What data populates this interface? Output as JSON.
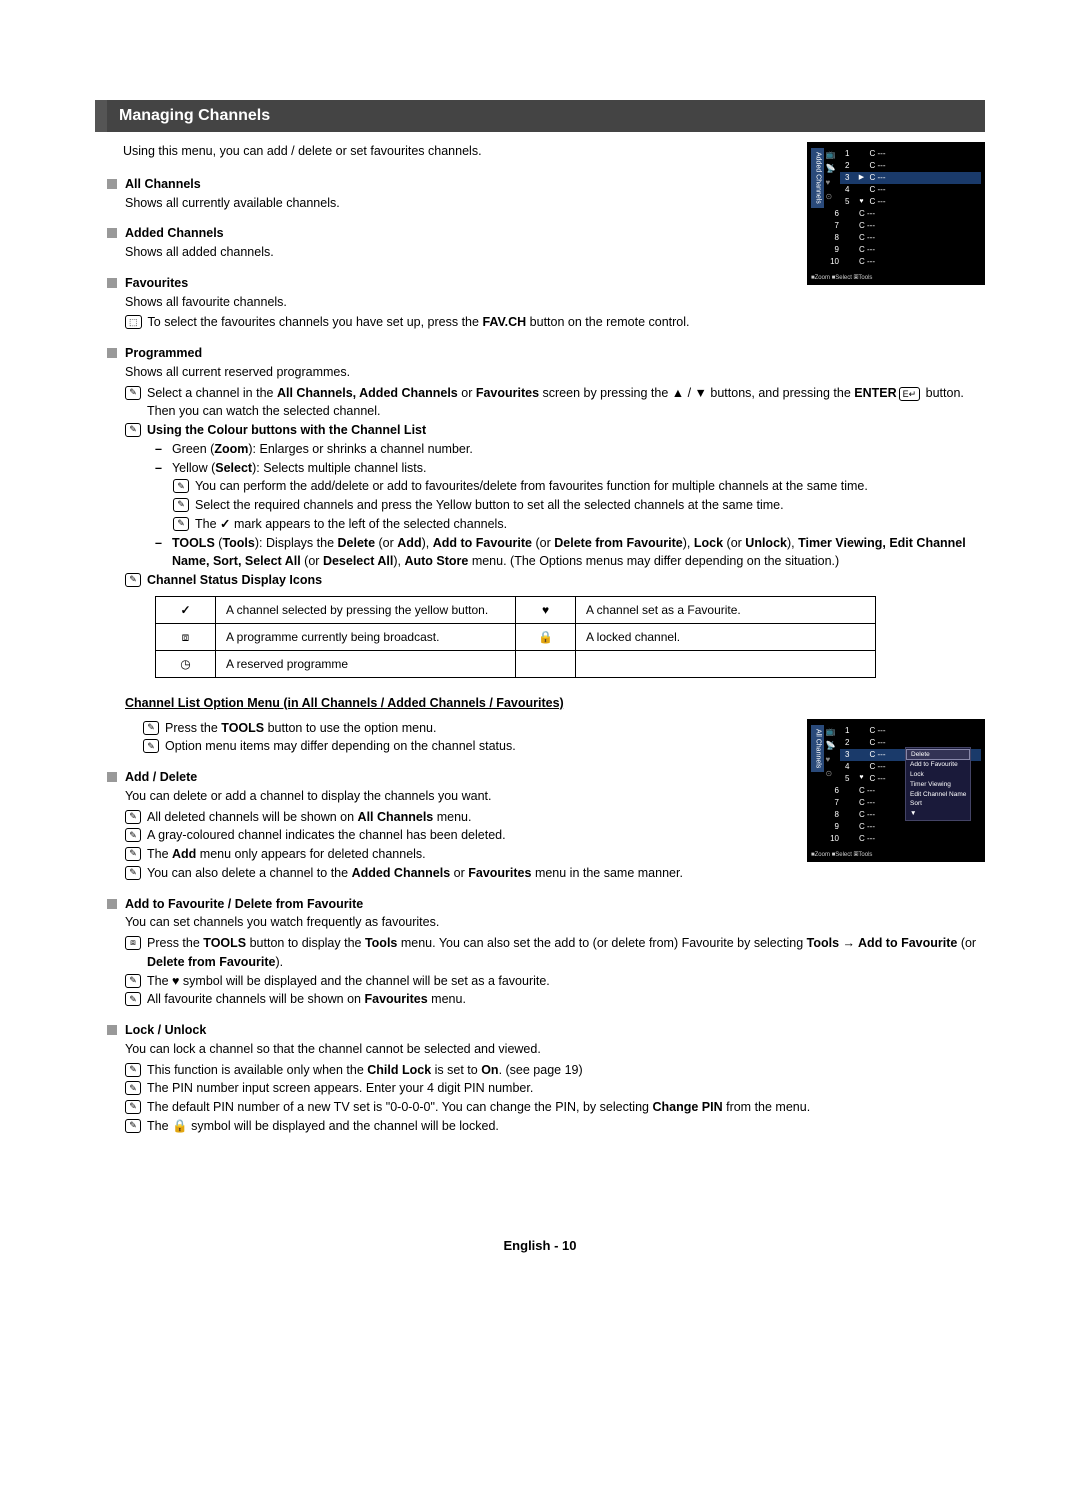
{
  "header": "Managing Channels",
  "intro": "Using this menu, you can add / delete or set favourites channels.",
  "sections": {
    "allch": {
      "title": "All Channels",
      "body": "Shows all currently available channels."
    },
    "added": {
      "title": "Added Channels",
      "body": "Shows all added channels."
    },
    "fav": {
      "title": "Favourites",
      "body": "Shows all favourite channels."
    },
    "fav_note_pre": "To select the favourites channels you have set up, press the ",
    "fav_note_bold": "FAV.CH",
    "fav_note_post": " button on the remote control.",
    "prog": {
      "title": "Programmed",
      "body": "Shows all current reserved programmes."
    },
    "prog_n1a": "Select a channel in the ",
    "prog_n1b": "All Channels, Added Channels",
    "prog_n1c": " or ",
    "prog_n1d": "Favourites",
    "prog_n1e": " screen by pressing the ▲ / ▼ buttons, and pressing the ",
    "prog_n1f": "ENTER",
    "prog_n1g": " button. Then you can watch the selected channel.",
    "prog_n2": "Using the Colour buttons with the Channel List",
    "d1a": "Green (",
    "d1b": "Zoom",
    "d1c": "): Enlarges or shrinks a channel number.",
    "d2a": "Yellow (",
    "d2b": "Select",
    "d2c": "): Selects multiple channel lists.",
    "d2n1": "You can perform the add/delete or add to favourites/delete from favourites function for multiple channels at the same time.",
    "d2n2": "Select the required channels and press the Yellow button to set all the selected channels at the same time.",
    "d2n3_pre": "The ",
    "d2n3_post": " mark appears to the left of the selected channels.",
    "d3a": "TOOLS",
    "d3b": " (",
    "d3c": "Tools",
    "d3d": "): Displays the ",
    "d3e": "Delete",
    "d3f": " (or ",
    "d3g": "Add",
    "d3h": "), ",
    "d3i": "Add to Favourite",
    "d3j": " (or ",
    "d3k": "Delete from Favourite",
    "d3l": "), ",
    "d3m": "Lock",
    "d3n": " (or ",
    "d3o": "Unlock",
    "d3p": "), ",
    "d3q": "Timer Viewing, Edit Channel Name, Sort, Select All",
    "d3r": " (or ",
    "d3s": "Deselect All",
    "d3t": "), ",
    "d3u": "Auto Store",
    "d3v": " menu. (The Options menus may differ depending on the situation.)",
    "prog_n3": "Channel Status Display Icons"
  },
  "table": {
    "r1c1": "A channel selected by pressing the yellow button.",
    "r1c2": "A channel set as a Favourite.",
    "r2c1": "A programme currently being broadcast.",
    "r2c2": "A locked channel.",
    "r3c1": "A reserved programme"
  },
  "subtitle": "Channel List Option Menu (in All Channels / Added Channels / Favourites)",
  "opt": {
    "n1a": "Press the ",
    "n1b": "TOOLS",
    "n1c": " button to use the option menu.",
    "n2": "Option menu items may differ depending on the channel status."
  },
  "adddel": {
    "title": "Add / Delete",
    "body": "You can delete or add a channel to display the channels you want.",
    "n1a": "All deleted channels will be shown on ",
    "n1b": "All Channels",
    "n1c": " menu.",
    "n2": "A gray-coloured channel indicates the channel has been deleted.",
    "n3a": "The ",
    "n3b": "Add",
    "n3c": " menu only appears for deleted channels.",
    "n4a": "You can also delete a channel to the ",
    "n4b": "Added Channels",
    "n4c": " or ",
    "n4d": "Favourites",
    "n4e": " menu in the same manner."
  },
  "addfav": {
    "title": "Add to Favourite / Delete from Favourite",
    "body": "You can set channels you watch frequently as favourites.",
    "n1a": "Press the ",
    "n1b": "TOOLS",
    "n1c": " button to display the ",
    "n1d": "Tools",
    "n1e": " menu. You can also set the add to (or delete from) Favourite by selecting ",
    "n1f": "Tools → Add to Favourite",
    "n1g": " (or ",
    "n1h": "Delete from Favourite",
    "n1i": ").",
    "n2a": "The ",
    "n2b": " symbol will be displayed and the channel will be set as a favourite.",
    "n3a": "All favourite channels will be shown on ",
    "n3b": "Favourites",
    "n3c": " menu."
  },
  "lock": {
    "title": "Lock / Unlock",
    "body": "You can lock a channel so that the channel cannot be selected and viewed.",
    "n1a": "This function is available only when the ",
    "n1b": "Child Lock",
    "n1c": " is set to ",
    "n1d": "On",
    "n1e": ". (see page 19)",
    "n2": "The PIN number input screen appears. Enter your 4 digit PIN number.",
    "n3a": "The default PIN number of a new TV set is \"0-0-0-0\". You can change the PIN, by selecting ",
    "n3b": "Change PIN",
    "n3c": " from the menu.",
    "n4a": "The ",
    "n4b": " symbol will be displayed and the channel will be locked."
  },
  "tv1": {
    "tab": "Added Channels",
    "rows": [
      {
        "i": "1",
        "c": "C ---"
      },
      {
        "i": "2",
        "c": "C ---"
      },
      {
        "i": "3",
        "c": "C ---",
        "hl": true,
        "ic": "▶"
      },
      {
        "i": "4",
        "c": "C ---"
      },
      {
        "i": "5",
        "c": "C ---",
        "ic": "♥"
      },
      {
        "i": "6",
        "c": "C ---"
      },
      {
        "i": "7",
        "c": "C ---"
      },
      {
        "i": "8",
        "c": "C ---"
      },
      {
        "i": "9",
        "c": "C ---"
      },
      {
        "i": "10",
        "c": "C ---"
      }
    ],
    "footer": "■Zoom ■Select 🞖Tools",
    "side_icons": [
      "📺",
      "📡",
      "♥",
      "⊙"
    ]
  },
  "tv2": {
    "tab": "All Channels",
    "rows": [
      {
        "i": "1",
        "c": "C ---"
      },
      {
        "i": "2",
        "c": "C ---"
      },
      {
        "i": "3",
        "c": "C ---",
        "hl": true
      },
      {
        "i": "4",
        "c": "C ---"
      },
      {
        "i": "5",
        "c": "C ---",
        "ic": "♥"
      },
      {
        "i": "6",
        "c": "C ---"
      },
      {
        "i": "7",
        "c": "C ---"
      },
      {
        "i": "8",
        "c": "C ---"
      },
      {
        "i": "9",
        "c": "C ---"
      },
      {
        "i": "10",
        "c": "C ---"
      }
    ],
    "footer": "■Zoom ■Select 🞖Tools",
    "side_icons": [
      "📺",
      "📡",
      "♥",
      "⊙"
    ],
    "ctx": [
      "Delete",
      "Add to Favourite",
      "Lock",
      "Timer Viewing",
      "Edit Channel Name",
      "Sort",
      "▼"
    ]
  },
  "footer": "English - 10",
  "icons": {
    "note": "✎",
    "remote": "⬚",
    "tick": "✓",
    "heart": "♥",
    "lock": "🔒",
    "tv": "⧈",
    "clock": "◷",
    "enter": "E↵",
    "tools": "⧈"
  }
}
